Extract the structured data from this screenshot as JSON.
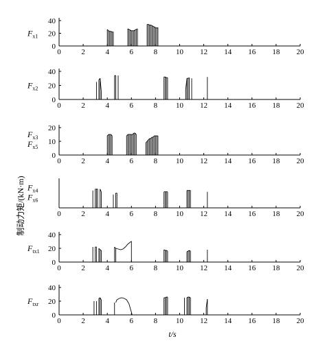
{
  "figure": {
    "y_common_label": "制动力矩/(kN·m)",
    "x_label": "t/s"
  },
  "chart_data": [
    {
      "type": "line",
      "panel_labels": [
        {
          "main": "F",
          "sub": "x1"
        }
      ],
      "xlim": [
        0,
        20
      ],
      "ylim": [
        0,
        40
      ],
      "x_ticks": [
        0,
        2,
        4,
        6,
        8,
        10,
        12,
        14,
        16,
        18,
        20
      ],
      "y_ticks": [
        0,
        20,
        40
      ],
      "spikes": [
        [
          4.0,
          26
        ],
        [
          4.1,
          24
        ],
        [
          4.2,
          23
        ],
        [
          4.3,
          23
        ],
        [
          4.4,
          22
        ],
        [
          4.5,
          22
        ],
        [
          5.7,
          27
        ],
        [
          5.8,
          26
        ],
        [
          5.9,
          25
        ],
        [
          6.0,
          24
        ],
        [
          6.1,
          24
        ],
        [
          6.2,
          24
        ],
        [
          6.3,
          25
        ],
        [
          6.4,
          26
        ],
        [
          6.5,
          27
        ],
        [
          7.3,
          34
        ],
        [
          7.4,
          34
        ],
        [
          7.5,
          33
        ],
        [
          7.6,
          33
        ],
        [
          7.7,
          32
        ],
        [
          7.8,
          31
        ],
        [
          7.9,
          30
        ],
        [
          8.0,
          29
        ],
        [
          8.1,
          28
        ],
        [
          8.2,
          29
        ]
      ]
    },
    {
      "type": "line",
      "panel_labels": [
        {
          "main": "F",
          "sub": "x2"
        }
      ],
      "xlim": [
        0,
        20
      ],
      "ylim": [
        0,
        40
      ],
      "x_ticks": [
        0,
        2,
        4,
        6,
        8,
        10,
        12,
        14,
        16,
        18,
        20
      ],
      "y_ticks": [
        0,
        20,
        40
      ],
      "spikes": [
        [
          3.1,
          25
        ],
        [
          3.3,
          28
        ],
        [
          3.4,
          30
        ],
        [
          3.5,
          12
        ],
        [
          4.6,
          34
        ],
        [
          4.7,
          34
        ],
        [
          4.9,
          34
        ],
        [
          8.7,
          32
        ],
        [
          8.8,
          32
        ],
        [
          8.9,
          31
        ],
        [
          9.0,
          31
        ],
        [
          10.5,
          14
        ],
        [
          10.6,
          30
        ],
        [
          10.7,
          30
        ],
        [
          10.8,
          31
        ],
        [
          11.0,
          30
        ],
        [
          12.3,
          32
        ]
      ]
    },
    {
      "type": "line",
      "panel_labels": [
        {
          "main": "F",
          "sub": "x3"
        },
        {
          "main": "F",
          "sub": "x5"
        }
      ],
      "xlim": [
        0,
        20
      ],
      "ylim": [
        0,
        20
      ],
      "x_ticks": [
        0,
        2,
        4,
        6,
        8,
        10,
        12,
        14,
        16,
        18,
        20
      ],
      "y_ticks": [
        0,
        10,
        20
      ],
      "spikes": [
        [
          4.0,
          14
        ],
        [
          4.1,
          15
        ],
        [
          4.2,
          15
        ],
        [
          4.3,
          15
        ],
        [
          4.4,
          14
        ],
        [
          5.6,
          14
        ],
        [
          5.7,
          15
        ],
        [
          5.8,
          15
        ],
        [
          5.9,
          15
        ],
        [
          6.0,
          15
        ],
        [
          6.1,
          15
        ],
        [
          6.2,
          16
        ],
        [
          6.3,
          16
        ],
        [
          6.4,
          15
        ],
        [
          7.2,
          9
        ],
        [
          7.3,
          10
        ],
        [
          7.4,
          11
        ],
        [
          7.5,
          12
        ],
        [
          7.6,
          12
        ],
        [
          7.7,
          13
        ],
        [
          7.8,
          13
        ],
        [
          7.9,
          14
        ],
        [
          8.0,
          14
        ],
        [
          8.1,
          14
        ],
        [
          8.2,
          14
        ]
      ]
    },
    {
      "type": "line",
      "panel_labels": [
        {
          "main": "F",
          "sub": "x4"
        },
        {
          "main": "F",
          "sub": "x6"
        }
      ],
      "xlim": [
        0,
        20
      ],
      "ylim": [
        0,
        20
      ],
      "x_ticks": [
        0,
        2,
        4,
        6,
        8,
        10,
        12,
        14,
        16,
        18,
        20
      ],
      "y_ticks": [],
      "spikes": [
        [
          2.8,
          13
        ],
        [
          3.0,
          14
        ],
        [
          3.1,
          14
        ],
        [
          3.2,
          14
        ],
        [
          3.4,
          14
        ],
        [
          3.5,
          12
        ],
        [
          4.5,
          10
        ],
        [
          4.7,
          11
        ],
        [
          4.8,
          11
        ],
        [
          8.7,
          12
        ],
        [
          8.8,
          12
        ],
        [
          8.9,
          12
        ],
        [
          9.0,
          12
        ],
        [
          10.6,
          13
        ],
        [
          10.7,
          13
        ],
        [
          10.8,
          13
        ],
        [
          10.9,
          13
        ],
        [
          12.3,
          12
        ]
      ]
    },
    {
      "type": "line",
      "panel_labels": [
        {
          "main": "F",
          "sub": "tx1"
        }
      ],
      "xlim": [
        0,
        20
      ],
      "ylim": [
        0,
        40
      ],
      "x_ticks": [
        0,
        2,
        4,
        6,
        8,
        10,
        12,
        14,
        16,
        18,
        20
      ],
      "y_ticks": [
        0,
        20,
        40
      ],
      "spikes": [
        [
          2.8,
          22
        ],
        [
          3.0,
          22
        ],
        [
          3.1,
          22
        ],
        [
          3.3,
          20
        ],
        [
          3.4,
          18
        ],
        [
          3.5,
          17
        ],
        [
          4.6,
          22
        ],
        [
          4.7,
          20
        ],
        [
          8.7,
          18
        ],
        [
          8.8,
          17
        ],
        [
          8.9,
          17
        ],
        [
          9.0,
          16
        ],
        [
          10.6,
          15
        ],
        [
          10.7,
          16
        ],
        [
          10.8,
          17
        ],
        [
          10.9,
          16
        ],
        [
          12.3,
          18
        ]
      ],
      "curves": [
        {
          "points": [
            [
              4.7,
              20
            ],
            [
              4.9,
              19
            ],
            [
              5.1,
              18
            ],
            [
              5.3,
              19
            ],
            [
              5.5,
              22
            ],
            [
              5.7,
              26
            ],
            [
              5.9,
              29
            ],
            [
              6.0,
              30
            ],
            [
              6.0,
              0
            ]
          ]
        }
      ]
    },
    {
      "type": "line",
      "panel_labels": [
        {
          "main": "F",
          "sub": "txr"
        }
      ],
      "xlim": [
        0,
        20
      ],
      "ylim": [
        0,
        40
      ],
      "x_ticks": [
        0,
        2,
        4,
        6,
        8,
        10,
        12,
        14,
        16,
        18,
        20
      ],
      "y_ticks": [
        0,
        20,
        40
      ],
      "spikes": [
        [
          2.9,
          20
        ],
        [
          3.1,
          20
        ],
        [
          3.3,
          24
        ],
        [
          3.4,
          25
        ],
        [
          3.5,
          22
        ],
        [
          4.6,
          18
        ],
        [
          8.7,
          25
        ],
        [
          8.8,
          25
        ],
        [
          8.9,
          26
        ],
        [
          9.0,
          26
        ],
        [
          10.4,
          25
        ],
        [
          10.6,
          25
        ],
        [
          10.7,
          26
        ],
        [
          10.8,
          26
        ],
        [
          10.9,
          25
        ],
        [
          12.2,
          10
        ],
        [
          12.3,
          23
        ]
      ],
      "curves": [
        {
          "points": [
            [
              4.7,
              18
            ],
            [
              4.8,
              22
            ],
            [
              5.0,
              24
            ],
            [
              5.2,
              25
            ],
            [
              5.4,
              24
            ],
            [
              5.6,
              22
            ],
            [
              5.8,
              16
            ],
            [
              5.9,
              10
            ],
            [
              6.0,
              4
            ],
            [
              6.05,
              0
            ]
          ]
        }
      ]
    }
  ]
}
